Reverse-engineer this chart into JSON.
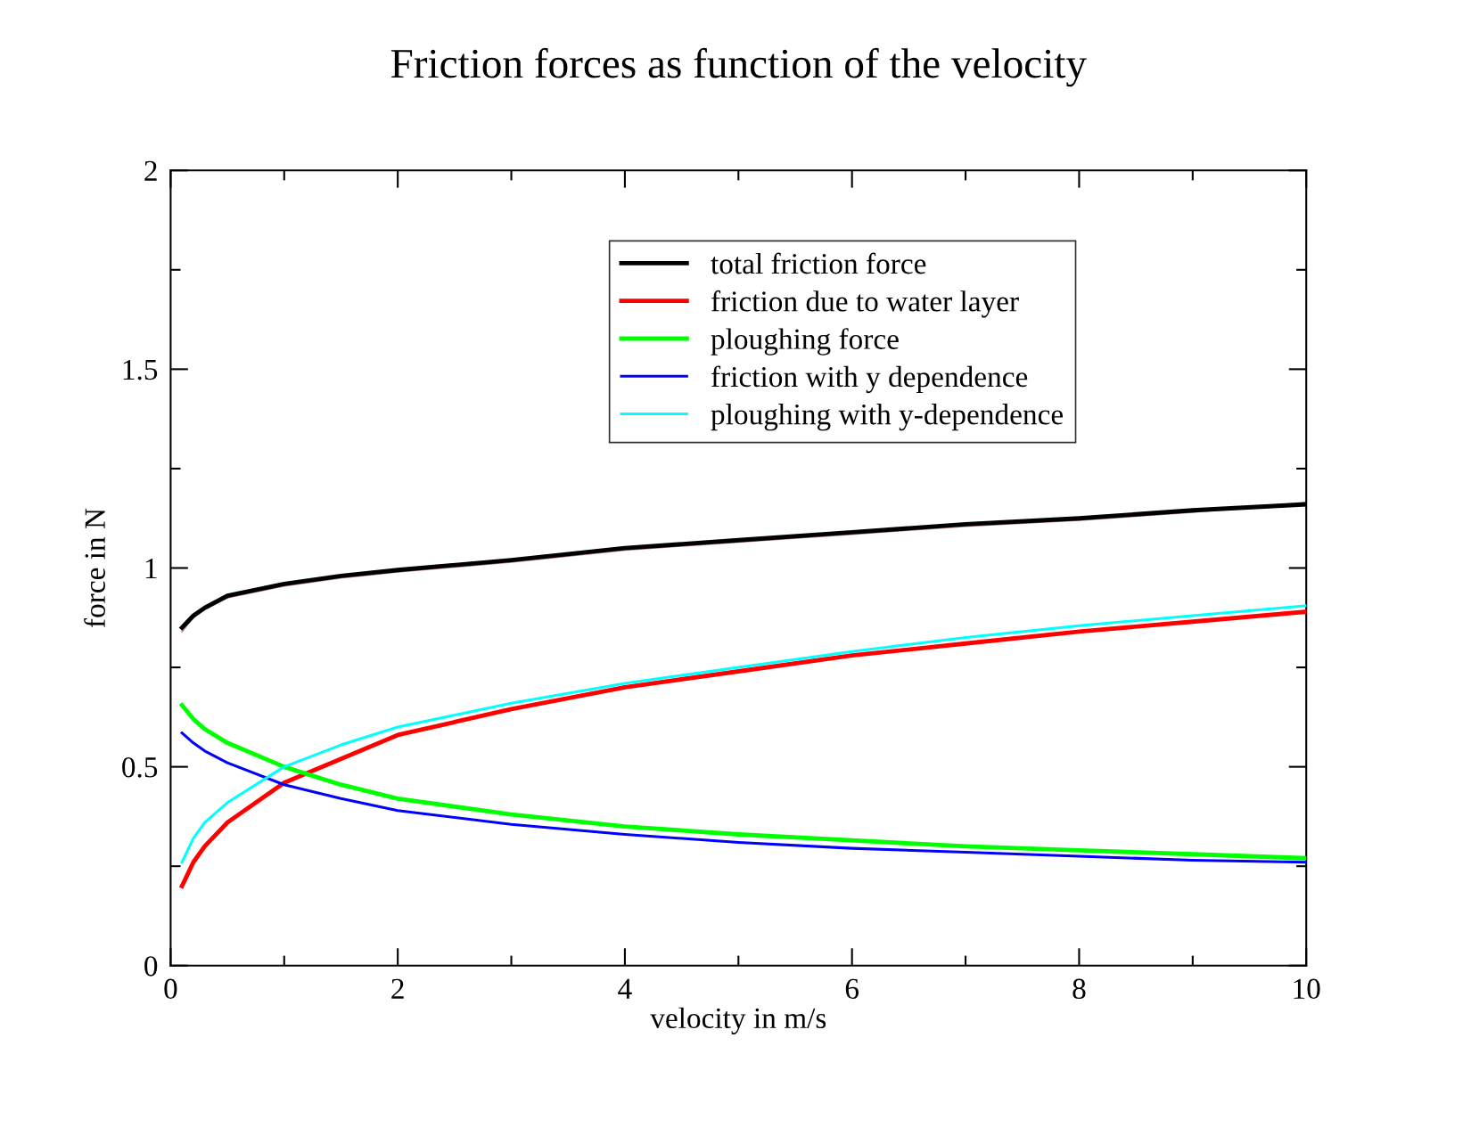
{
  "chart_data": {
    "type": "line",
    "title": "Friction forces as function of the velocity",
    "xlabel": "velocity in m/s",
    "ylabel": "force in N",
    "x": [
      0.1,
      0.2,
      0.3,
      0.5,
      1,
      1.5,
      2,
      3,
      4,
      5,
      6,
      7,
      8,
      9,
      10
    ],
    "series": [
      {
        "name": "total friction force",
        "color": "#000000",
        "values": [
          0.85,
          0.88,
          0.9,
          0.93,
          0.96,
          0.98,
          0.995,
          1.02,
          1.05,
          1.07,
          1.09,
          1.11,
          1.125,
          1.145,
          1.16
        ]
      },
      {
        "name": "friction due to water layer",
        "color": "#ff0000",
        "values": [
          0.2,
          0.26,
          0.3,
          0.36,
          0.46,
          0.52,
          0.58,
          0.645,
          0.7,
          0.74,
          0.78,
          0.81,
          0.84,
          0.865,
          0.89
        ]
      },
      {
        "name": "ploughing force",
        "color": "#00ff00",
        "values": [
          0.655,
          0.62,
          0.595,
          0.56,
          0.5,
          0.455,
          0.42,
          0.38,
          0.35,
          0.33,
          0.315,
          0.3,
          0.29,
          0.28,
          0.27
        ]
      },
      {
        "name": "friction with y dependence",
        "color": "#0000ff",
        "values": [
          0.585,
          0.56,
          0.54,
          0.51,
          0.455,
          0.42,
          0.39,
          0.355,
          0.33,
          0.31,
          0.295,
          0.285,
          0.275,
          0.265,
          0.26
        ]
      },
      {
        "name": "ploughing with y-dependence",
        "color": "#00ffff",
        "values": [
          0.26,
          0.32,
          0.36,
          0.41,
          0.5,
          0.555,
          0.6,
          0.66,
          0.71,
          0.75,
          0.79,
          0.825,
          0.855,
          0.88,
          0.905
        ]
      },
      {
        "color": "#b08080",
        "values": [
          0.84,
          0.875,
          0.895,
          0.925,
          0.955,
          0.975,
          0.99,
          1.015,
          1.045,
          1.065,
          1.085,
          1.105,
          1.12,
          1.14,
          1.165
        ]
      }
    ],
    "xlim": [
      0,
      10
    ],
    "ylim": [
      0,
      2
    ],
    "xticks": [
      0,
      {
        "value": 1,
        "label": null
      },
      2,
      {
        "value": 3,
        "label": null
      },
      4,
      {
        "value": 5,
        "label": null
      },
      6,
      {
        "value": 7,
        "label": null
      },
      8,
      {
        "value": 9,
        "label": null
      },
      10
    ],
    "yticks": [
      0,
      {
        "value": 0.25,
        "label": null
      },
      0.5,
      {
        "value": 0.75,
        "label": null
      },
      1,
      {
        "value": 1.25,
        "label": null
      },
      1.5,
      {
        "value": 1.75,
        "label": null
      },
      2
    ],
    "legend": "top right",
    "grid": false
  }
}
